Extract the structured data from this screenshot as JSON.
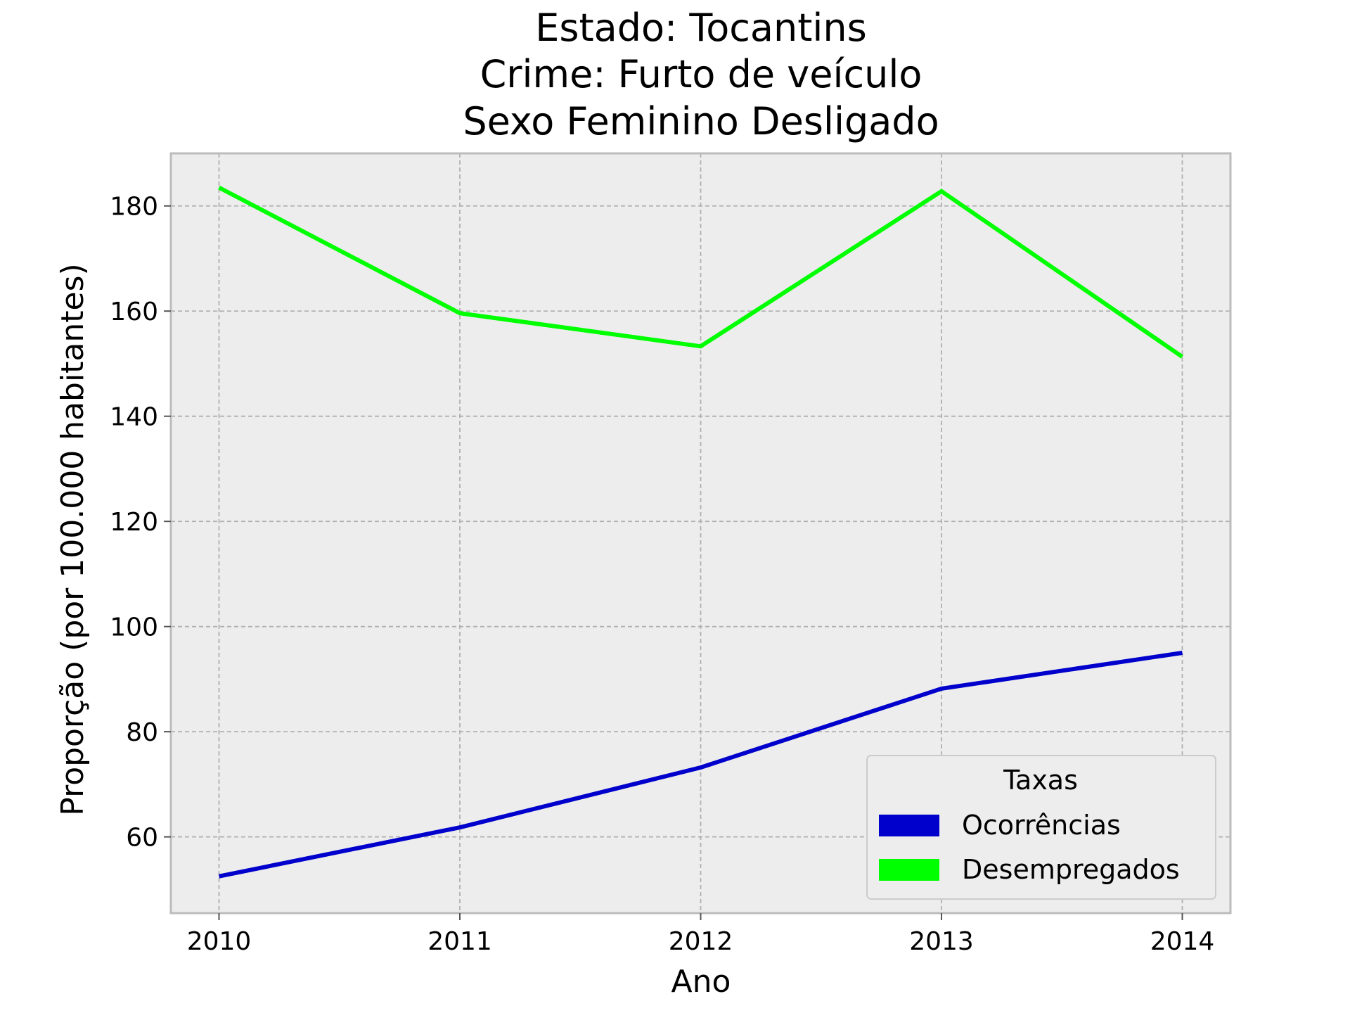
{
  "chart_data": {
    "type": "line",
    "title_lines": [
      "Estado: Tocantins",
      "Crime: Furto de veículo",
      "Sexo  Feminino   Desligado"
    ],
    "xlabel": "Ano",
    "ylabel": "Proporção (por 100.000 habitantes)",
    "x": [
      2010,
      2011,
      2012,
      2013,
      2014
    ],
    "x_tick_labels": [
      "2010",
      "2011",
      "2012",
      "2013",
      "2014"
    ],
    "y_ticks": [
      60,
      80,
      100,
      120,
      140,
      160,
      180
    ],
    "y_tick_labels": [
      "60",
      "80",
      "100",
      "120",
      "140",
      "160",
      "180"
    ],
    "xlim": [
      2009.8,
      2014.2
    ],
    "ylim": [
      45.5,
      190
    ],
    "grid": true,
    "legend": {
      "title": "Taxas",
      "placement": "lower-right"
    },
    "series": [
      {
        "name": "Ocorrências",
        "color": "#0000cc",
        "values": [
          52.5,
          61.8,
          73.2,
          88.2,
          95.0
        ]
      },
      {
        "name": "Desempregados",
        "color": "#00ff00",
        "values": [
          183.5,
          159.6,
          153.3,
          182.8,
          151.3
        ]
      }
    ],
    "colors": {
      "plot_background": "#ededed",
      "grid": "#b0b0b0",
      "axes_border": "#bcbcbc",
      "legend_border": "#cccccc"
    }
  }
}
